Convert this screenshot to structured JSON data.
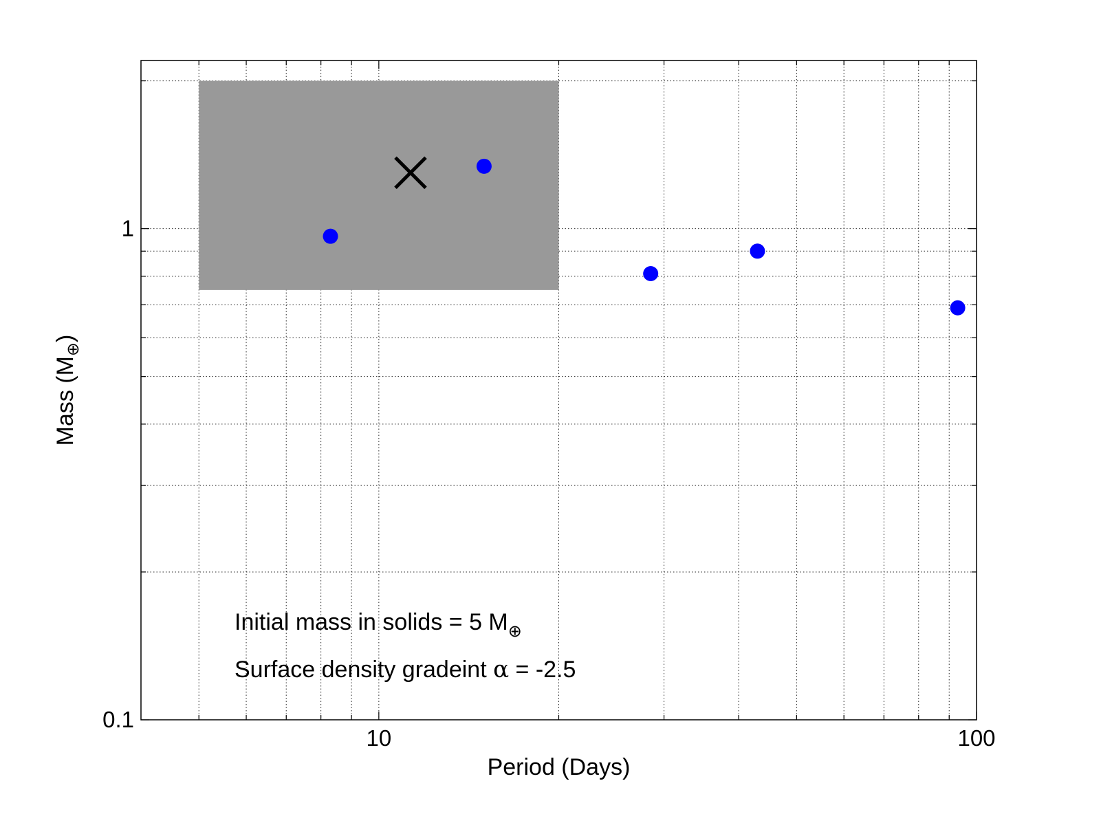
{
  "chart_data": {
    "type": "scatter",
    "title": "",
    "xlabel": "Period (Days)",
    "ylabel_main": "Mass (M",
    "ylabel_sub": "⊕",
    "ylabel_close": ")",
    "xscale": "log",
    "yscale": "log",
    "xlim": [
      4.0,
      100
    ],
    "ylim": [
      0.1,
      2.2
    ],
    "grid": true,
    "x_ticks": [
      10,
      100
    ],
    "x_tick_labels": [
      "10",
      "100"
    ],
    "y_ticks": [
      0.1,
      1
    ],
    "y_tick_labels": [
      "0.1",
      "1"
    ],
    "region": {
      "x": [
        5,
        20
      ],
      "y": [
        0.75,
        2.0
      ],
      "color": "#999999"
    },
    "marker_x": {
      "x": 11.3,
      "y": 1.3,
      "color": "#000000"
    },
    "points": {
      "color": "#0000ff",
      "x": [
        8.3,
        15.0,
        28.5,
        43.0,
        93.0
      ],
      "y": [
        0.965,
        1.34,
        0.81,
        0.9,
        0.69
      ]
    },
    "annotations": [
      {
        "text": "Initial mass in solids = 5 M",
        "sub": "⊕"
      },
      {
        "text": "Surface density gradeint ",
        "greek": "α",
        "tail": " = -2.5"
      }
    ]
  }
}
